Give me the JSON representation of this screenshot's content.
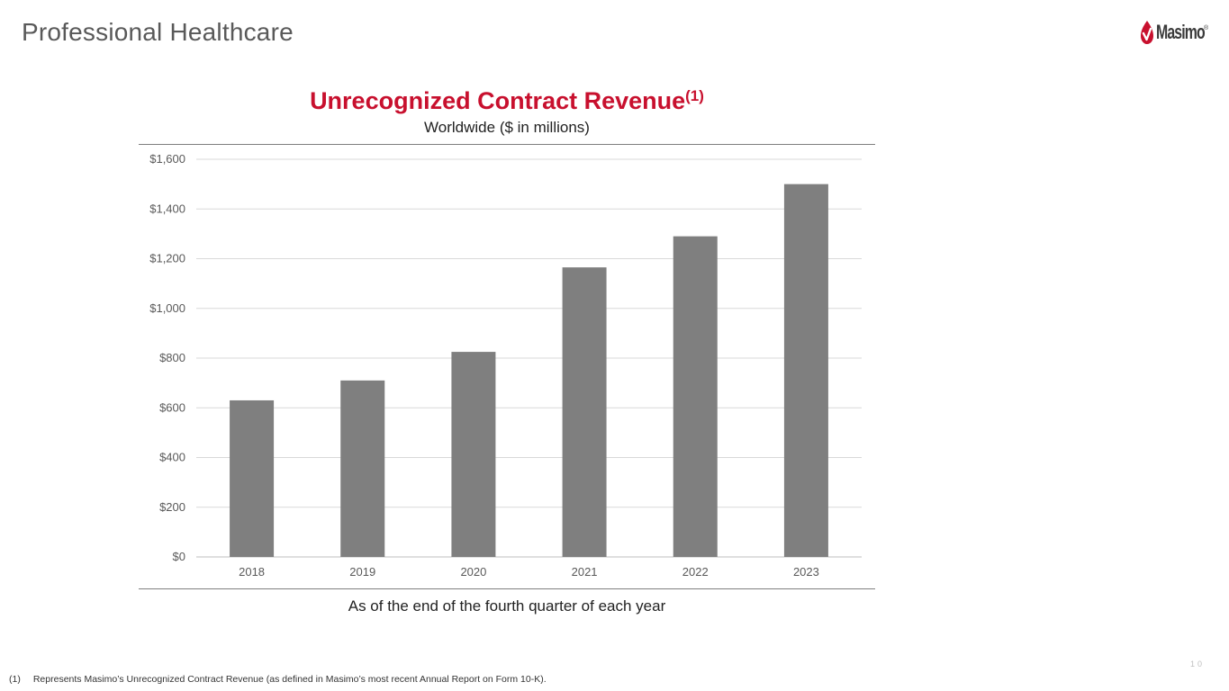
{
  "header": {
    "title": "Professional Healthcare",
    "logo_text": "Masimo",
    "logo_registered": "®"
  },
  "colors": {
    "accent_red": "#c8102e",
    "bar_gray": "#7f7f7f",
    "grid_gray": "#d9d9d9",
    "text_gray": "#595959"
  },
  "chart_data": {
    "type": "bar",
    "title": "Unrecognized Contract Revenue",
    "title_superscript": "(1)",
    "subtitle": "Worldwide ($ in millions)",
    "caption": "As of the end of the fourth quarter of each year",
    "xlabel": "",
    "ylabel": "",
    "categories": [
      "2018",
      "2019",
      "2020",
      "2021",
      "2022",
      "2023"
    ],
    "values": [
      630,
      710,
      825,
      1165,
      1290,
      1500
    ],
    "ylim": [
      0,
      1600
    ],
    "yticks": [
      0,
      200,
      400,
      600,
      800,
      1000,
      1200,
      1400,
      1600
    ],
    "ytick_labels": [
      "$0",
      "$200",
      "$400",
      "$600",
      "$800",
      "$1,000",
      "$1,200",
      "$1,400",
      "$1,600"
    ],
    "grid": true,
    "legend": "none"
  },
  "footnote": {
    "marker": "(1)",
    "text": "Represents Masimo’s Unrecognized Contract Revenue (as defined in Masimo’s most recent Annual Report on Form 10-K)."
  },
  "page_number": "10"
}
